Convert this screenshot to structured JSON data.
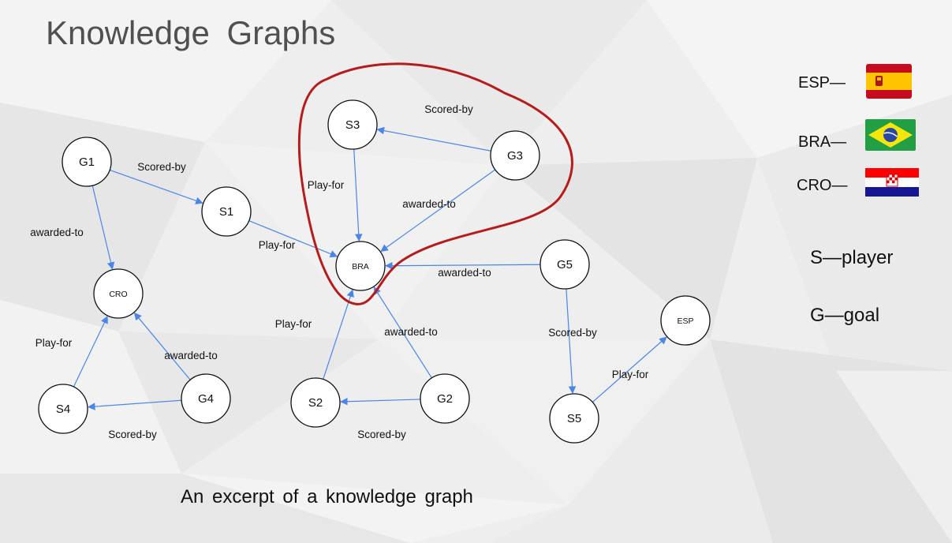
{
  "title": "Knowledge  Graphs",
  "caption": "An excerpt of a knowledge graph",
  "legend": {
    "esp": "ESP—",
    "bra": "BRA—",
    "cro": "CRO—",
    "player": "S—player",
    "goal": "G—goal"
  },
  "colors": {
    "edge": "#4a86e8",
    "highlight": "#b71c1c",
    "node_fill": "#ffffff",
    "node_stroke": "#111111"
  },
  "nodes": [
    {
      "id": "G1",
      "label": "G1"
    },
    {
      "id": "S1",
      "label": "S1"
    },
    {
      "id": "S3",
      "label": "S3"
    },
    {
      "id": "G3",
      "label": "G3"
    },
    {
      "id": "BRA",
      "label": "BRA"
    },
    {
      "id": "CRO",
      "label": "CRO"
    },
    {
      "id": "G5",
      "label": "G5"
    },
    {
      "id": "ESP",
      "label": "ESP"
    },
    {
      "id": "S4",
      "label": "S4"
    },
    {
      "id": "G4",
      "label": "G4"
    },
    {
      "id": "S2",
      "label": "S2"
    },
    {
      "id": "G2",
      "label": "G2"
    },
    {
      "id": "S5",
      "label": "S5"
    }
  ],
  "edges": [
    {
      "from": "G1",
      "to": "S1",
      "label": "Scored-by"
    },
    {
      "from": "G1",
      "to": "CRO",
      "label": "awarded-to"
    },
    {
      "from": "S1",
      "to": "BRA",
      "label": "Play-for"
    },
    {
      "from": "G3",
      "to": "S3",
      "label": "Scored-by"
    },
    {
      "from": "S3",
      "to": "BRA",
      "label": "Play-for"
    },
    {
      "from": "G3",
      "to": "BRA",
      "label": "awarded-to"
    },
    {
      "from": "G5",
      "to": "BRA",
      "label": "awarded-to"
    },
    {
      "from": "G5",
      "to": "S5",
      "label": "Scored-by"
    },
    {
      "from": "S5",
      "to": "ESP",
      "label": "Play-for"
    },
    {
      "from": "S2",
      "to": "BRA",
      "label": "Play-for"
    },
    {
      "from": "G2",
      "to": "BRA",
      "label": "awarded-to"
    },
    {
      "from": "G2",
      "to": "S2",
      "label": "Scored-by"
    },
    {
      "from": "S4",
      "to": "CRO",
      "label": "Play-for"
    },
    {
      "from": "G4",
      "to": "CRO",
      "label": "awarded-to"
    },
    {
      "from": "G4",
      "to": "S4",
      "label": "Scored-by"
    }
  ]
}
